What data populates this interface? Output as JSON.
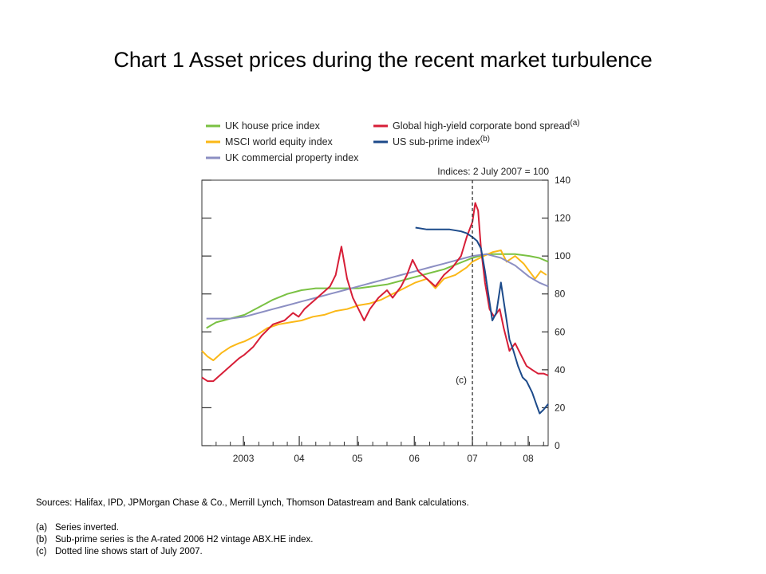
{
  "chart_data": {
    "type": "line",
    "title": "Chart 1  Asset prices during the recent market turbulence",
    "ylabel": "Indices: 2 July 2007 = 100",
    "ylim": [
      0,
      140
    ],
    "yticks": [
      "0",
      "20",
      "40",
      "60",
      "80",
      "100",
      "120",
      "140"
    ],
    "xlim": [
      2002.25,
      2008.33
    ],
    "xticks": [
      {
        "label": "2003",
        "x": 2002.98
      },
      {
        "label": "04",
        "x": 2003.96
      },
      {
        "label": "05",
        "x": 2004.98
      },
      {
        "label": "06",
        "x": 2005.98
      },
      {
        "label": "07",
        "x": 2007.0
      },
      {
        "label": "08",
        "x": 2007.98
      }
    ],
    "legend": "top",
    "annotation": {
      "label": "(c)",
      "x": 2007.0
    },
    "series": [
      {
        "name": "UK house price index",
        "color": "#7ac143",
        "points": [
          [
            2002.33,
            62
          ],
          [
            2002.5,
            65
          ],
          [
            2002.75,
            67
          ],
          [
            2003.0,
            69
          ],
          [
            2003.25,
            73
          ],
          [
            2003.5,
            77
          ],
          [
            2003.75,
            80
          ],
          [
            2004.0,
            82
          ],
          [
            2004.25,
            83
          ],
          [
            2004.5,
            83
          ],
          [
            2004.75,
            83
          ],
          [
            2005.0,
            83
          ],
          [
            2005.25,
            84
          ],
          [
            2005.5,
            85
          ],
          [
            2005.75,
            87
          ],
          [
            2006.0,
            89
          ],
          [
            2006.25,
            91
          ],
          [
            2006.5,
            93
          ],
          [
            2006.75,
            96
          ],
          [
            2007.0,
            99
          ],
          [
            2007.25,
            101
          ],
          [
            2007.5,
            101
          ],
          [
            2007.75,
            101
          ],
          [
            2008.0,
            100
          ],
          [
            2008.17,
            99
          ],
          [
            2008.33,
            97
          ]
        ]
      },
      {
        "name": "MSCI world equity index",
        "color": "#fbb817",
        "points": [
          [
            2002.25,
            50
          ],
          [
            2002.35,
            47
          ],
          [
            2002.45,
            45
          ],
          [
            2002.6,
            49
          ],
          [
            2002.75,
            52
          ],
          [
            2002.9,
            54
          ],
          [
            2003.0,
            55
          ],
          [
            2003.2,
            58
          ],
          [
            2003.4,
            62
          ],
          [
            2003.6,
            64
          ],
          [
            2003.8,
            65
          ],
          [
            2004.0,
            66
          ],
          [
            2004.2,
            68
          ],
          [
            2004.4,
            69
          ],
          [
            2004.6,
            71
          ],
          [
            2004.8,
            72
          ],
          [
            2005.0,
            74
          ],
          [
            2005.2,
            75
          ],
          [
            2005.4,
            77
          ],
          [
            2005.6,
            80
          ],
          [
            2005.8,
            83
          ],
          [
            2006.0,
            86
          ],
          [
            2006.2,
            88
          ],
          [
            2006.35,
            83
          ],
          [
            2006.5,
            88
          ],
          [
            2006.7,
            90
          ],
          [
            2006.9,
            94
          ],
          [
            2007.0,
            97
          ],
          [
            2007.2,
            100
          ],
          [
            2007.35,
            102
          ],
          [
            2007.5,
            103
          ],
          [
            2007.6,
            97
          ],
          [
            2007.75,
            100
          ],
          [
            2007.9,
            96
          ],
          [
            2008.0,
            92
          ],
          [
            2008.1,
            88
          ],
          [
            2008.2,
            92
          ],
          [
            2008.3,
            90
          ]
        ]
      },
      {
        "name": "UK commercial property index",
        "color": "#8c8fc3",
        "points": [
          [
            2002.33,
            67
          ],
          [
            2002.75,
            67
          ],
          [
            2003.0,
            68
          ],
          [
            2003.25,
            70
          ],
          [
            2003.5,
            72
          ],
          [
            2003.75,
            74
          ],
          [
            2004.0,
            76
          ],
          [
            2004.25,
            78
          ],
          [
            2004.5,
            80
          ],
          [
            2004.75,
            82
          ],
          [
            2005.0,
            84
          ],
          [
            2005.25,
            86
          ],
          [
            2005.5,
            88
          ],
          [
            2005.75,
            90
          ],
          [
            2006.0,
            92
          ],
          [
            2006.25,
            94
          ],
          [
            2006.5,
            96
          ],
          [
            2006.75,
            98
          ],
          [
            2007.0,
            100
          ],
          [
            2007.25,
            101
          ],
          [
            2007.5,
            99
          ],
          [
            2007.75,
            95
          ],
          [
            2008.0,
            89
          ],
          [
            2008.17,
            86
          ],
          [
            2008.33,
            84
          ]
        ]
      },
      {
        "name": "Global high-yield corporate bond spread",
        "superscript": "(a)",
        "color": "#d71e37",
        "points": [
          [
            2002.25,
            36
          ],
          [
            2002.35,
            34
          ],
          [
            2002.45,
            34
          ],
          [
            2002.6,
            38
          ],
          [
            2002.75,
            42
          ],
          [
            2002.9,
            46
          ],
          [
            2003.0,
            48
          ],
          [
            2003.15,
            52
          ],
          [
            2003.3,
            58
          ],
          [
            2003.5,
            64
          ],
          [
            2003.7,
            66
          ],
          [
            2003.85,
            70
          ],
          [
            2003.95,
            68
          ],
          [
            2004.05,
            72
          ],
          [
            2004.2,
            76
          ],
          [
            2004.35,
            80
          ],
          [
            2004.5,
            84
          ],
          [
            2004.6,
            90
          ],
          [
            2004.7,
            105
          ],
          [
            2004.8,
            88
          ],
          [
            2004.9,
            78
          ],
          [
            2005.0,
            72
          ],
          [
            2005.1,
            66
          ],
          [
            2005.2,
            72
          ],
          [
            2005.35,
            78
          ],
          [
            2005.5,
            82
          ],
          [
            2005.6,
            78
          ],
          [
            2005.75,
            84
          ],
          [
            2005.85,
            90
          ],
          [
            2005.95,
            98
          ],
          [
            2006.05,
            92
          ],
          [
            2006.2,
            88
          ],
          [
            2006.35,
            84
          ],
          [
            2006.5,
            90
          ],
          [
            2006.65,
            94
          ],
          [
            2006.8,
            100
          ],
          [
            2006.9,
            110
          ],
          [
            2007.0,
            118
          ],
          [
            2007.05,
            128
          ],
          [
            2007.1,
            124
          ],
          [
            2007.15,
            104
          ],
          [
            2007.22,
            86
          ],
          [
            2007.3,
            72
          ],
          [
            2007.38,
            68
          ],
          [
            2007.48,
            72
          ],
          [
            2007.55,
            62
          ],
          [
            2007.65,
            50
          ],
          [
            2007.75,
            54
          ],
          [
            2007.85,
            48
          ],
          [
            2007.95,
            42
          ],
          [
            2008.05,
            40
          ],
          [
            2008.15,
            38
          ],
          [
            2008.25,
            38
          ],
          [
            2008.33,
            37
          ]
        ]
      },
      {
        "name": "US sub-prime index",
        "superscript": "(b)",
        "color": "#1c4a8a",
        "points": [
          [
            2006.0,
            115
          ],
          [
            2006.2,
            114
          ],
          [
            2006.4,
            114
          ],
          [
            2006.6,
            114
          ],
          [
            2006.8,
            113
          ],
          [
            2006.9,
            112
          ],
          [
            2007.0,
            110
          ],
          [
            2007.08,
            108
          ],
          [
            2007.15,
            104
          ],
          [
            2007.22,
            92
          ],
          [
            2007.28,
            80
          ],
          [
            2007.35,
            66
          ],
          [
            2007.42,
            70
          ],
          [
            2007.5,
            86
          ],
          [
            2007.58,
            70
          ],
          [
            2007.65,
            56
          ],
          [
            2007.72,
            50
          ],
          [
            2007.8,
            42
          ],
          [
            2007.88,
            36
          ],
          [
            2007.95,
            34
          ],
          [
            2008.05,
            28
          ],
          [
            2008.12,
            22
          ],
          [
            2008.18,
            17
          ],
          [
            2008.25,
            19
          ],
          [
            2008.33,
            22
          ]
        ]
      }
    ]
  },
  "sources": "Sources:  Halifax, IPD, JPMorgan Chase & Co., Merrill Lynch, Thomson Datastream and Bank calculations.",
  "notes": [
    {
      "key": "(a)",
      "text": "Series inverted."
    },
    {
      "key": "(b)",
      "text": "Sub-prime series is the A-rated 2006 H2 vintage ABX.HE index."
    },
    {
      "key": "(c)",
      "text": "Dotted line shows start of July 2007."
    }
  ]
}
